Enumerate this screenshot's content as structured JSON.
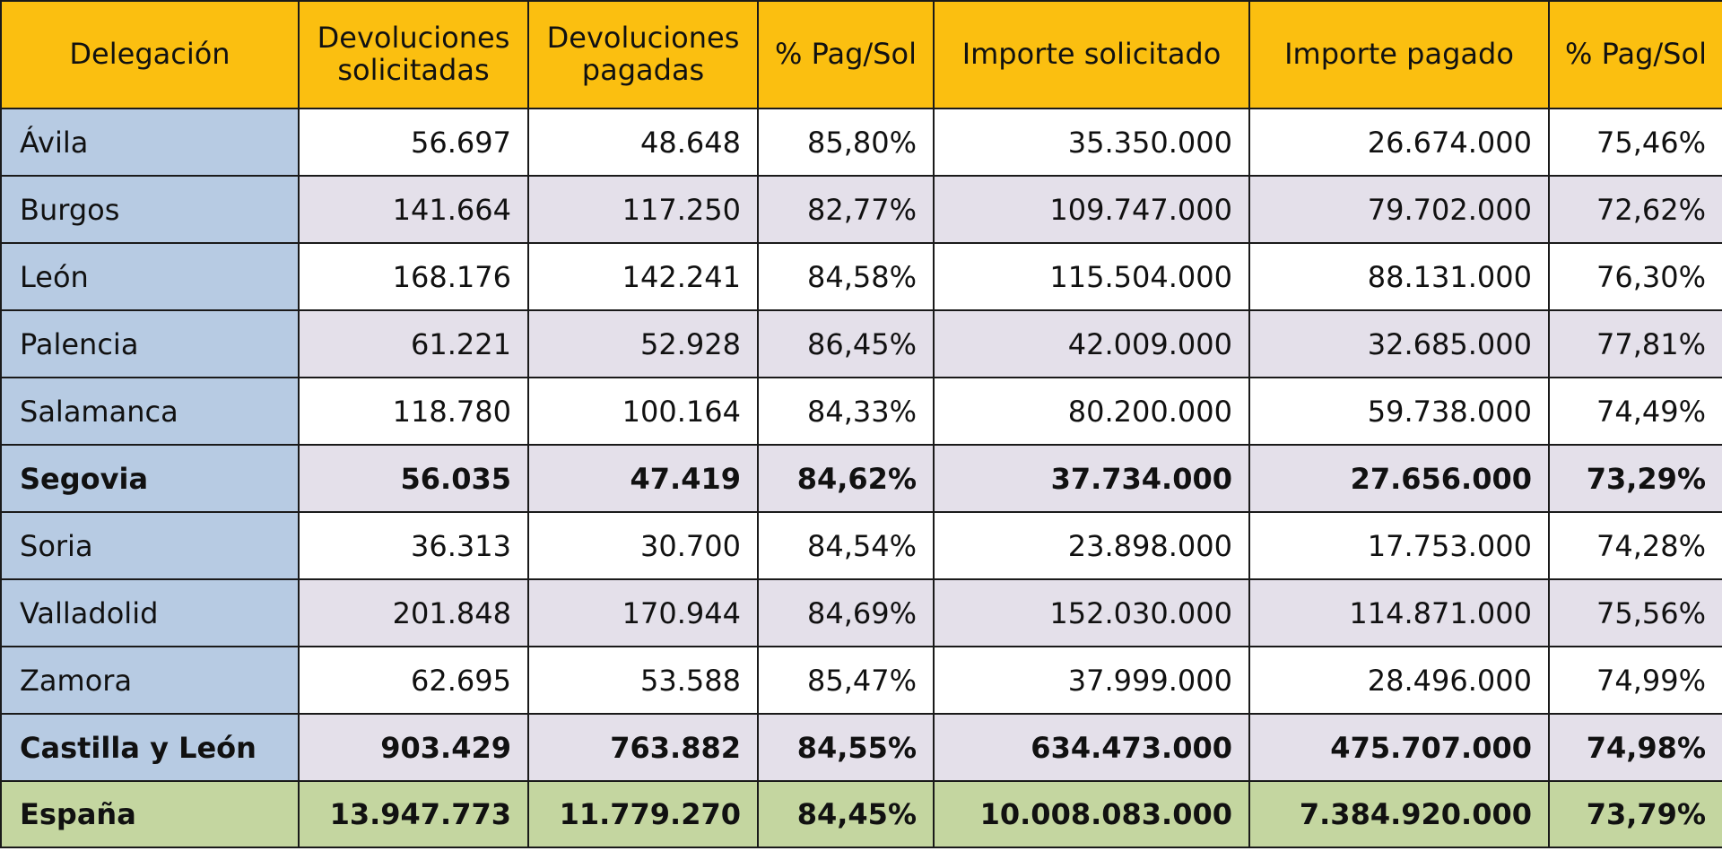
{
  "headers": [
    "Delegación",
    "Devoluciones solicitadas",
    "Devoluciones pagadas",
    "% Pag/Sol",
    "Importe solicitado",
    "Importe pagado",
    "% Pag/Sol"
  ],
  "rows": [
    {
      "name": "Ávila",
      "sol": "56.697",
      "pag": "48.648",
      "pct": "85,80%",
      "imp_sol": "35.350.000",
      "imp_pag": "26.674.000",
      "pct_imp": "75,46%"
    },
    {
      "name": "Burgos",
      "sol": "141.664",
      "pag": "117.250",
      "pct": "82,77%",
      "imp_sol": "109.747.000",
      "imp_pag": "79.702.000",
      "pct_imp": "72,62%"
    },
    {
      "name": "León",
      "sol": "168.176",
      "pag": "142.241",
      "pct": "84,58%",
      "imp_sol": "115.504.000",
      "imp_pag": "88.131.000",
      "pct_imp": "76,30%"
    },
    {
      "name": "Palencia",
      "sol": "61.221",
      "pag": "52.928",
      "pct": "86,45%",
      "imp_sol": "42.009.000",
      "imp_pag": "32.685.000",
      "pct_imp": "77,81%"
    },
    {
      "name": "Salamanca",
      "sol": "118.780",
      "pag": "100.164",
      "pct": "84,33%",
      "imp_sol": "80.200.000",
      "imp_pag": "59.738.000",
      "pct_imp": "74,49%"
    },
    {
      "name": "Segovia",
      "sol": "56.035",
      "pag": "47.419",
      "pct": "84,62%",
      "imp_sol": "37.734.000",
      "imp_pag": "27.656.000",
      "pct_imp": "73,29%"
    },
    {
      "name": "Soria",
      "sol": "36.313",
      "pag": "30.700",
      "pct": "84,54%",
      "imp_sol": "23.898.000",
      "imp_pag": "17.753.000",
      "pct_imp": "74,28%"
    },
    {
      "name": "Valladolid",
      "sol": "201.848",
      "pag": "170.944",
      "pct": "84,69%",
      "imp_sol": "152.030.000",
      "imp_pag": "114.871.000",
      "pct_imp": "75,56%"
    },
    {
      "name": "Zamora",
      "sol": "62.695",
      "pag": "53.588",
      "pct": "85,47%",
      "imp_sol": "37.999.000",
      "imp_pag": "28.496.000",
      "pct_imp": "74,99%"
    },
    {
      "name": "Castilla y León",
      "sol": "903.429",
      "pag": "763.882",
      "pct": "84,55%",
      "imp_sol": "634.473.000",
      "imp_pag": "475.707.000",
      "pct_imp": "74,98%"
    },
    {
      "name": "España",
      "sol": "13.947.773",
      "pag": "11.779.270",
      "pct": "84,45%",
      "imp_sol": "10.008.083.000",
      "imp_pag": "7.384.920.000",
      "pct_imp": "73,79%"
    }
  ],
  "colors": {
    "header_bg": "#fbbf10",
    "name_col_bg": "#b7cbe3",
    "row_alt_bg": "#e4e0ea",
    "spain_row_bg": "#c4d6a0"
  }
}
